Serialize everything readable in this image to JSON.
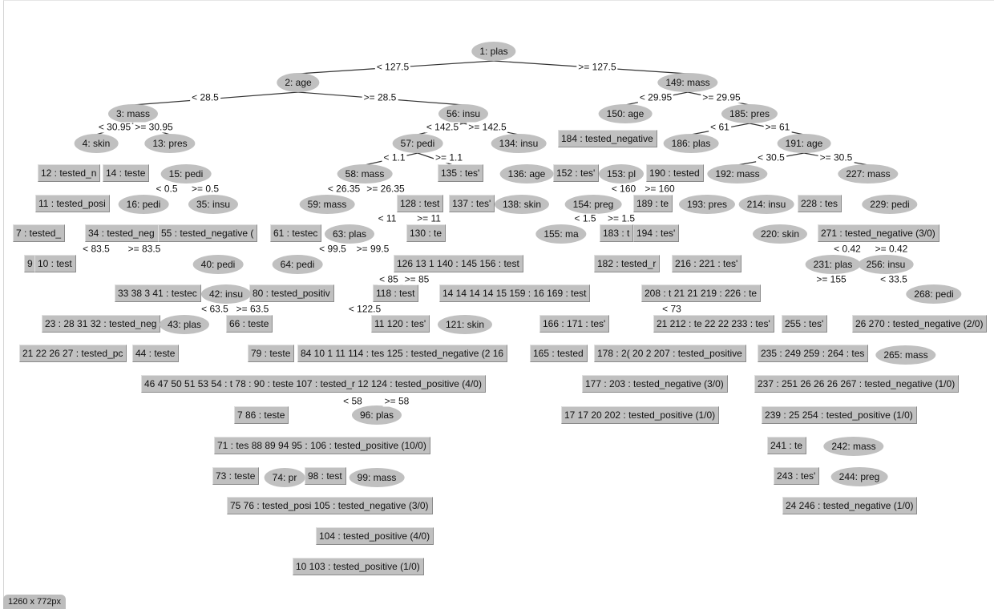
{
  "viewer": {
    "size_badge": "1260 x 772px"
  },
  "colors": {
    "node_fill": "#c0c0c0",
    "edge": "#333333",
    "background": "#ffffff"
  },
  "split_nodes": [
    "1: plas",
    "2: age",
    "149: mass",
    "3: mass",
    "56: insu",
    "150: age",
    "185: pres",
    "4: skin",
    "13: pres",
    "57: pedi",
    "134: insu",
    "186: plas",
    "191: age",
    "58: mass",
    "136: age",
    "192: mass",
    "227: mass",
    "15: pedi",
    "16: pedi",
    "35: insu",
    "59: mass",
    "138: skin",
    "154: preg",
    "193: pres",
    "214: insu",
    "229: pedi",
    "63: plas",
    "155: ma",
    "220: skin",
    "40: pedi",
    "64: pedi",
    "256: insu",
    "231: plas",
    "42: insu",
    "268: pedi",
    "43: plas",
    "121: skin",
    "265: mass",
    "96: plas",
    "99: mass",
    "74: pr",
    "242: mass",
    "244: preg",
    "153: pl"
  ],
  "leaf_nodes": [
    "12 : tested_n",
    "14 : teste",
    "135 : tes'",
    "152 : tes'",
    "184 : tested_negative",
    "190 : tested",
    "11 : tested_posi",
    "128 : test",
    "137 : tes'",
    "189 : te",
    "228 : tes",
    "7 : tested_",
    "34 : tested_neg",
    "55 : tested_negative (",
    "61 : testec",
    "130 : te",
    "183 : t",
    "194 : tes'",
    "271 : tested_negative (3/0)",
    "9",
    "10 : test",
    "126 13 1 140 : 145 156 : test",
    "182 : tested_r",
    "216 : 221 : tes'",
    "33 38 3 41 : testec",
    "80 : tested_positiv",
    "118 : test",
    "14 14 14 14 15 159 : 16 169 : test",
    "208 : t 21 21 219 : 226 : te",
    "23 : 28 31 32 : tested_neg",
    "66 : teste",
    "11 120 : tes'",
    "166 : 171 : tes'",
    "21 212 : te 22 22 233 : tes'",
    "255 : tes'",
    "26 270 : tested_negative (2/0)",
    "21 22 26 27 : tested_pc",
    "44 : teste",
    "79 : teste",
    "84 10 1 11 114 : tes 125 : tested_negative (2 16",
    "165 : tested",
    "178 : 2( 20 2 207 : tested_positive",
    "235 : 249 259 : 264 : tes",
    "46 47 50 51 53 54 : t 78 : 90 : teste 107 : tested_r 12 124 : tested_positive (4/0)",
    "177 : 203 : tested_negative (3/0)",
    "237 : 251 26 26 26 267 : tested_negative (1/0)",
    "7 86 : teste",
    "17 17 20 202 : tested_positive (1/0)",
    "239 : 25 254 : tested_positive (1/0)",
    "71 : tes 88 89 94 95 : 106 : tested_positive (10/0)",
    "241 : te",
    "73 : teste",
    "98 : test",
    "243 : tes'",
    "75 76 : tested_posi 105 : tested_negative (3/0)",
    "24 246 : tested_negative (1/0)",
    "104 : tested_positive (4/0)",
    "10 103 : tested_positive (1/0)"
  ],
  "edge_labels": [
    "< 127.5",
    ">= 127.5",
    "< 28.5",
    ">= 28.5",
    "< 29.95",
    ">= 29.95",
    "< 30.95",
    ">= 30.95",
    "< 142.5",
    ">= 142.5",
    "< 61",
    ">= 61",
    "< 1.1",
    ">= 1.1",
    "< 30.5",
    ">= 30.5",
    "< 26.35",
    ">= 26.35",
    "< 160",
    ">= 160",
    "< 0.5",
    ">= 0.5",
    "< 11",
    ">= 11",
    "< 1.5",
    ">= 1.5",
    "< 99.5",
    ">= 99.5",
    "< 0.42",
    ">= 0.42",
    "< 85",
    ">= 85",
    ">= 155",
    "< 63.5",
    ">= 63.5",
    "< 122.5",
    "< 58",
    ">= 58",
    "< 83.5",
    ">= 83.5",
    "< 73",
    "< 33.5"
  ]
}
